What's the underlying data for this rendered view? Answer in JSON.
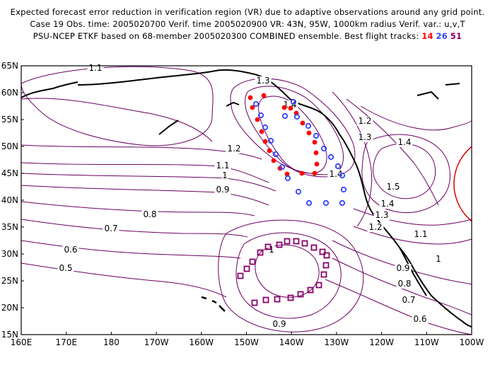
{
  "header": {
    "line1": "Expected forecast error reduction in verification region (VR) due to adaptive observations around any grid point.",
    "line2": "Case 19   Obs. time: 2005020700   Verif. time 2005020900   VR: 43N, 95W, 1000km radius   Verif. var.: u,v,T",
    "line3_prefix": "PSU-NCEP ETKF based on 68-member 2005020300 COMBINED ensemble.   Best flight tracks:",
    "tracks": [
      {
        "id": "14",
        "color": "#ff0000"
      },
      {
        "id": "26",
        "color": "#3344ff"
      },
      {
        "id": "51",
        "color": "#880066"
      }
    ]
  },
  "axes": {
    "lat_labels": [
      "65N",
      "60N",
      "55N",
      "50N",
      "45N",
      "40N",
      "35N",
      "30N",
      "25N",
      "20N",
      "15N"
    ],
    "lon_labels": [
      "160E",
      "170E",
      "180",
      "170W",
      "160W",
      "150W",
      "140W",
      "130W",
      "120W",
      "110W",
      "100W"
    ]
  },
  "contour_labels": [
    {
      "text": "1.1"
    },
    {
      "text": "1.3"
    },
    {
      "text": "1.4"
    },
    {
      "text": "1.2"
    },
    {
      "text": "1.3"
    },
    {
      "text": "1.4"
    },
    {
      "text": "1.2"
    },
    {
      "text": "1.1"
    },
    {
      "text": "1"
    },
    {
      "text": "0.9"
    },
    {
      "text": "1.4"
    },
    {
      "text": "1.5"
    },
    {
      "text": "1.4"
    },
    {
      "text": "1.3"
    },
    {
      "text": "1.2"
    },
    {
      "text": "0.8"
    },
    {
      "text": "0.7"
    },
    {
      "text": "0.6"
    },
    {
      "text": "0.5"
    },
    {
      "text": "1.1"
    },
    {
      "text": "1"
    },
    {
      "text": "0.9"
    },
    {
      "text": "0.8"
    },
    {
      "text": "0.7"
    },
    {
      "text": "0.6"
    },
    {
      "text": "1"
    },
    {
      "text": "0.9"
    }
  ],
  "colors": {
    "contour": "#6a0060",
    "coast": "#000000",
    "verification_region": "#dd0000",
    "track14": "#ff0000",
    "track26": "#3344ff",
    "track51": "#880066"
  }
}
